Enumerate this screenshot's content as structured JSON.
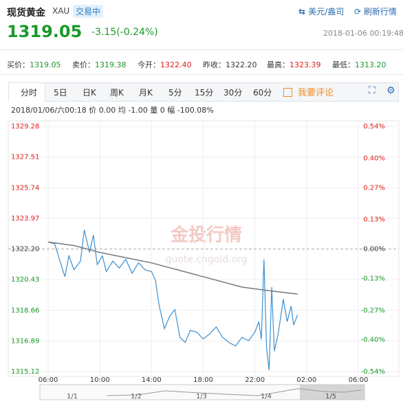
{
  "header": {
    "title": "现货黄金",
    "code": "XAU",
    "status": "交易中",
    "unit": "美元/盎司",
    "refresh": "刷新行情",
    "price": "1319.05",
    "change": "-3.15(-0.24%)",
    "time": "2018-01-06 00:19:48"
  },
  "stats": [
    {
      "label": "买价：",
      "value": "1319.05"
    },
    {
      "label": "卖价：",
      "value": "1319.38"
    },
    {
      "label": "今开：",
      "value": "1322.40"
    },
    {
      "label": "昨收：",
      "value": "1322.20"
    },
    {
      "label": "最高：",
      "value": "1323.39"
    },
    {
      "label": "最低：",
      "value": "1313.20"
    }
  ],
  "tabs": [
    "分时",
    "5日",
    "日K",
    "周K",
    "月K",
    "5分",
    "15分",
    "30分",
    "60分"
  ],
  "comment": "我要评论",
  "info": "2018/01/06/六00:18  价 0.00  均 -1.00  量 0  幅 -100.08%",
  "watermark": {
    "brand": "金投行情",
    "site": "quote.cngold.org"
  },
  "navigator": [
    "1/1",
    "1/2",
    "1/3",
    "1/4",
    "1/5"
  ],
  "chart_data": {
    "type": "line",
    "xlim": [
      0,
      24
    ],
    "xticks": [
      {
        "value": 0,
        "label": "06:00"
      },
      {
        "value": 4,
        "label": "10:00"
      },
      {
        "value": 8,
        "label": "14:00"
      },
      {
        "value": 12,
        "label": "18:00"
      },
      {
        "value": 16,
        "label": "22:00"
      },
      {
        "value": 20,
        "label": "02:00"
      },
      {
        "value": 24,
        "label": "06:00"
      }
    ],
    "ylim": [
      1315.12,
      1329.28
    ],
    "yticks": [
      1329.28,
      1327.51,
      1325.74,
      1323.97,
      {
        "value": 1322.2,
        "label": "1322.20"
      },
      1320.43,
      1318.66,
      1316.89,
      1315.12
    ],
    "y2lim": [
      -0.54,
      0.54
    ],
    "y2ticks": [
      {
        "value": 0.54,
        "label": "0.54%"
      },
      {
        "value": 0.4,
        "label": "0.40%"
      },
      {
        "value": 0.27,
        "label": "0.27%"
      },
      {
        "value": 0.13,
        "label": "0.13%"
      },
      {
        "value": 0,
        "label": "0.00%"
      },
      {
        "value": -0.13,
        "label": "-0.13%"
      },
      {
        "value": -0.27,
        "label": "-0.27%"
      },
      {
        "value": -0.4,
        "label": "-0.40%"
      },
      {
        "value": -0.54,
        "label": "-0.54%"
      }
    ],
    "grid": true,
    "series": [
      {
        "color": "#3b8fd0",
        "x": [
          0,
          0.5,
          1,
          1.3,
          1.6,
          2,
          2.5,
          2.8,
          3.2,
          3.5,
          3.8,
          4.2,
          4.5,
          5,
          5.5,
          6,
          6.5,
          7,
          7.5,
          8,
          8.3,
          8.6,
          9,
          9.4,
          9.8,
          10.2,
          10.6,
          11,
          11.5,
          12,
          12.5,
          13,
          13.5,
          14,
          14.5,
          15,
          15.5,
          16,
          16.3,
          16.5,
          16.7,
          16.9,
          17.1,
          17.3,
          17.5,
          17.8,
          18.2,
          18.5,
          18.8,
          19,
          19.3
        ],
        "values": [
          1322.6,
          1322.5,
          1321.3,
          1320.6,
          1321.8,
          1321.0,
          1321.5,
          1323.3,
          1322.0,
          1323.0,
          1321.3,
          1321.8,
          1320.9,
          1321.5,
          1321.1,
          1321.6,
          1320.8,
          1321.4,
          1321.0,
          1320.9,
          1320.4,
          1318.9,
          1317.6,
          1318.3,
          1318.7,
          1317.1,
          1316.8,
          1317.5,
          1317.4,
          1317.0,
          1317.3,
          1317.7,
          1317.1,
          1316.8,
          1316.6,
          1317.1,
          1316.9,
          1317.4,
          1318.0,
          1317.0,
          1321.6,
          1316.5,
          1315.2,
          1320.0,
          1316.3,
          1317.3,
          1319.3,
          1318.0,
          1318.9,
          1317.8,
          1318.4
        ]
      },
      {
        "color": "#777777",
        "x": [
          0,
          2,
          4,
          8,
          12,
          15,
          17,
          19.3
        ],
        "values": [
          1322.6,
          1322.4,
          1322.0,
          1321.4,
          1320.6,
          1320.0,
          1319.8,
          1319.6
        ]
      }
    ]
  }
}
